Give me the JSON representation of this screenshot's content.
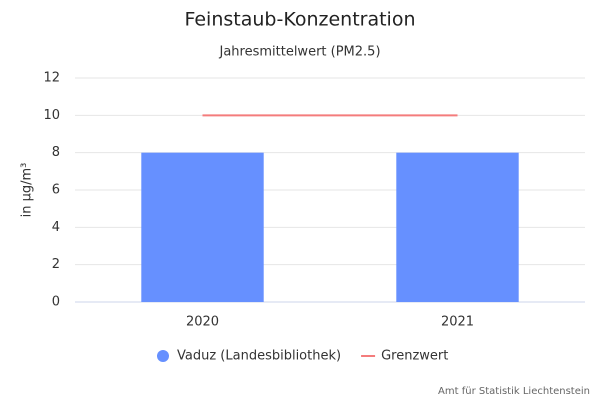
{
  "chart_data": {
    "type": "bar",
    "title": "Feinstaub-Konzentration",
    "subtitle": "Jahresmittelwert (PM2.5)",
    "y_label": "in µg/m³",
    "credit": "Amt für Statistik Liechtenstein",
    "categories": [
      "2020",
      "2021"
    ],
    "series": [
      {
        "name": "Vaduz (Landesbibliothek)",
        "type": "bar",
        "color": "#6690ff",
        "values": [
          8,
          8
        ]
      },
      {
        "name": "Grenzwert",
        "type": "line",
        "color": "#f47c7c",
        "values": [
          10,
          10
        ]
      }
    ],
    "ylim": [
      0,
      12
    ],
    "yticks": [
      0,
      2,
      4,
      6,
      8,
      10,
      12
    ],
    "grid": true,
    "legend": "bottom"
  }
}
